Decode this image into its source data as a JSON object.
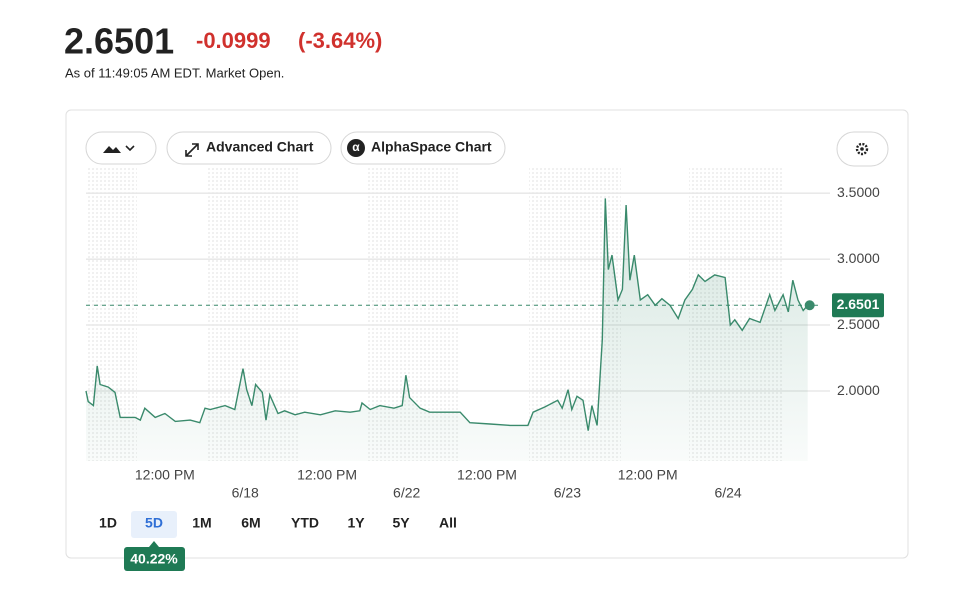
{
  "header": {
    "price": "2.6501",
    "change": "-0.0999",
    "change_pct": "(-3.64%)",
    "as_of": "As of 11:49:05 AM EDT. Market Open."
  },
  "toolbar": {
    "advanced": "Advanced Chart",
    "alphaspace": "AlphaSpace Chart"
  },
  "ranges": {
    "options": [
      "1D",
      "5D",
      "1M",
      "6M",
      "YTD",
      "1Y",
      "5Y",
      "All"
    ],
    "selected": 1,
    "badge": "40.22%"
  },
  "chart_data": {
    "type": "line",
    "color": "#3a8a6c",
    "grid": true,
    "current": 2.6501,
    "x": [
      0,
      0.3,
      1,
      1.5,
      1.9,
      3.0,
      3.9,
      4.6,
      6.6,
      7.3,
      7.9,
      9.3,
      10.6,
      12.0,
      14.0,
      15.3,
      16.0,
      16.7,
      18.7,
      20.0,
      21.1,
      21.6,
      22.3,
      22.8,
      23.7,
      24.2,
      24.7,
      25.8,
      26.7,
      28.1,
      29.4,
      31.5,
      33.5,
      35.5,
      36.8,
      37.1,
      38.2,
      39.5,
      41.4,
      42.5,
      43.0,
      43.5,
      44.9,
      46.2,
      47.6,
      50.3,
      51.6,
      54.3,
      57.0,
      59.4,
      60.1,
      61.7,
      63.4,
      64.0,
      64.8,
      65.3,
      66.0,
      66.8,
      67.5,
      68.0,
      68.7,
      69.4,
      69.8,
      70.2,
      70.7,
      71.5,
      72.1,
      72.6,
      73.1,
      73.7,
      74.5,
      75.5,
      76.5,
      77.4,
      78.5,
      79.6,
      80.5,
      81.5,
      82.3,
      83.2,
      84.5,
      85.9,
      86.6,
      87.2,
      88.2,
      89.2,
      90.6,
      91.9,
      92.6,
      93.7,
      94.4,
      95.0,
      95.7,
      96.4,
      97.0
    ],
    "values": [
      2.0,
      1.92,
      1.89,
      2.19,
      2.05,
      2.03,
      1.99,
      1.8,
      1.8,
      1.78,
      1.87,
      1.8,
      1.83,
      1.77,
      1.78,
      1.76,
      1.87,
      1.86,
      1.89,
      1.86,
      2.17,
      2.01,
      1.89,
      2.05,
      1.99,
      1.78,
      1.97,
      1.83,
      1.85,
      1.82,
      1.84,
      1.82,
      1.85,
      1.84,
      1.85,
      1.91,
      1.86,
      1.89,
      1.87,
      1.89,
      2.12,
      1.95,
      1.87,
      1.84,
      1.84,
      1.84,
      1.76,
      1.75,
      1.74,
      1.74,
      1.84,
      1.88,
      1.93,
      1.87,
      2.01,
      1.86,
      1.96,
      1.93,
      1.7,
      1.89,
      1.74,
      2.39,
      3.46,
      2.92,
      3.03,
      2.69,
      2.77,
      3.41,
      2.84,
      3.03,
      2.69,
      2.73,
      2.65,
      2.7,
      2.65,
      2.55,
      2.69,
      2.77,
      2.88,
      2.83,
      2.88,
      2.86,
      2.5,
      2.54,
      2.46,
      2.55,
      2.52,
      2.73,
      2.61,
      2.73,
      2.6,
      2.84,
      2.69,
      2.61,
      2.65
    ],
    "xlim": [
      0,
      100
    ],
    "xticks": [
      {
        "value": 10.6,
        "label": "12:00 PM"
      },
      {
        "value": 21.4,
        "label": "6/18"
      },
      {
        "value": 32.4,
        "label": "12:00 PM"
      },
      {
        "value": 43.1,
        "label": "6/22"
      },
      {
        "value": 53.9,
        "label": "12:00 PM"
      },
      {
        "value": 64.7,
        "label": "6/23"
      },
      {
        "value": 75.5,
        "label": "12:00 PM"
      },
      {
        "value": 86.3,
        "label": "6/24"
      }
    ],
    "ylim": [
      1.47,
      3.69
    ],
    "yticks": [
      {
        "value": 2,
        "label": "2.0000"
      },
      {
        "value": 2.5,
        "label": "2.5000"
      },
      {
        "value": 3,
        "label": "3.0000"
      },
      {
        "value": 3.5,
        "label": "3.5000"
      }
    ]
  }
}
